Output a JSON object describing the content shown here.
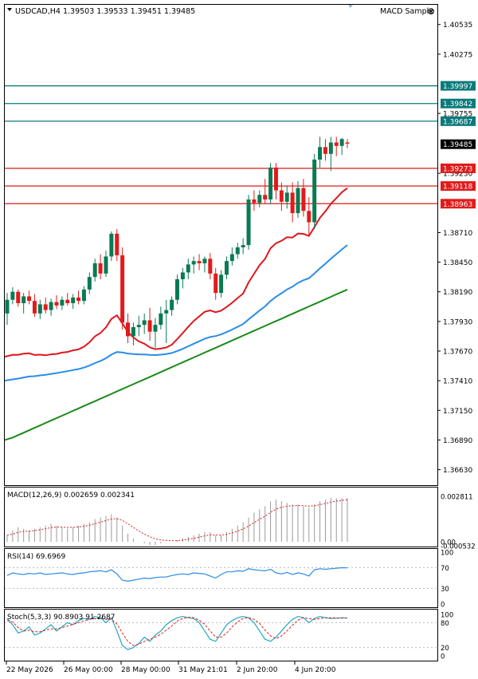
{
  "window": {
    "symbol_line": "USDCAD,H4  1.39503 1.39533 1.39451 1.39485",
    "indicator_label": "MACD Sample",
    "close_glyph": "⊗"
  },
  "colors": {
    "bull": "#0a7a52",
    "bear": "#e01b1b",
    "ma_fast": "#e0171c",
    "ma_mid": "#2a8ce8",
    "ma_slow": "#1a8a1a",
    "teal_line": "#0b7a7a",
    "red_line": "#e01b1b",
    "macd_hist": "#9a9a9a",
    "macd_signal": "#e01b1b",
    "rsi": "#2a8ce8",
    "stoch_main": "#23a6c4",
    "stoch_signal": "#e01b1b"
  },
  "main_axis": {
    "ticks": [
      "1.40535",
      "1.40275",
      "1.39755",
      "1.39230",
      "1.38710",
      "1.38450",
      "1.38190",
      "1.37930",
      "1.37670",
      "1.37410",
      "1.37150",
      "1.36890",
      "1.36630"
    ]
  },
  "levels": {
    "teal": [
      {
        "price": 1.39997,
        "label": "1.39997"
      },
      {
        "price": 1.39842,
        "label": "1.39842"
      },
      {
        "price": 1.39687,
        "label": "1.39687"
      }
    ],
    "red": [
      {
        "price": 1.39273,
        "label": "1.39273"
      },
      {
        "price": 1.39118,
        "label": "1.39118"
      },
      {
        "price": 1.38963,
        "label": "1.38963"
      }
    ],
    "current": {
      "price": 1.39485,
      "label": "1.39485"
    }
  },
  "macd": {
    "header": "MACD(12,26,9) 0.002659 0.002341",
    "ticks": [
      "0.002811",
      "0.00",
      "-0.000532"
    ]
  },
  "rsi": {
    "header": "RSI(14) 69.6969",
    "ticks": [
      "100",
      "70",
      "30",
      "0"
    ]
  },
  "stoch": {
    "header": "Stoch(5,3,3) 90.8903 91.2687",
    "ticks": [
      "100",
      "80",
      "20",
      "0"
    ]
  },
  "time_axis": {
    "labels": [
      "22 May 2026",
      "26 May 00:00",
      "28 May 00:00",
      "31 May 21:01",
      "2 Jun 20:00",
      "4 Jun 20:00"
    ]
  },
  "chart_data": {
    "type": "candlestick",
    "symbol": "USDCAD",
    "timeframe": "H4",
    "ylim": [
      1.3655,
      1.4068
    ],
    "candles": [
      [
        1.38,
        1.3818,
        1.379,
        1.3812
      ],
      [
        1.3812,
        1.3823,
        1.3808,
        1.3819
      ],
      [
        1.3819,
        1.3821,
        1.3806,
        1.3809
      ],
      [
        1.3809,
        1.3818,
        1.38,
        1.3815
      ],
      [
        1.3815,
        1.382,
        1.3808,
        1.3811
      ],
      [
        1.3811,
        1.3817,
        1.3797,
        1.38
      ],
      [
        1.38,
        1.3812,
        1.3795,
        1.3808
      ],
      [
        1.3808,
        1.3814,
        1.38,
        1.3803
      ],
      [
        1.3803,
        1.3813,
        1.3798,
        1.381
      ],
      [
        1.381,
        1.3816,
        1.3804,
        1.3807
      ],
      [
        1.3807,
        1.3815,
        1.3803,
        1.3812
      ],
      [
        1.3812,
        1.3818,
        1.3807,
        1.3809
      ],
      [
        1.3809,
        1.3817,
        1.3804,
        1.3814
      ],
      [
        1.3814,
        1.382,
        1.3808,
        1.3811
      ],
      [
        1.3811,
        1.3824,
        1.3808,
        1.3821
      ],
      [
        1.3821,
        1.3836,
        1.3817,
        1.3832
      ],
      [
        1.3832,
        1.3848,
        1.3828,
        1.3844
      ],
      [
        1.3844,
        1.3852,
        1.383,
        1.3835
      ],
      [
        1.3835,
        1.3855,
        1.3832,
        1.385
      ],
      [
        1.385,
        1.3872,
        1.3846,
        1.387
      ],
      [
        1.387,
        1.3874,
        1.3846,
        1.3851
      ],
      [
        1.3851,
        1.3858,
        1.3786,
        1.3792
      ],
      [
        1.3792,
        1.38,
        1.3774,
        1.378
      ],
      [
        1.378,
        1.3792,
        1.3772,
        1.3788
      ],
      [
        1.3788,
        1.3798,
        1.378,
        1.379
      ],
      [
        1.379,
        1.38,
        1.3782,
        1.3794
      ],
      [
        1.3794,
        1.3805,
        1.3776,
        1.3784
      ],
      [
        1.3784,
        1.3796,
        1.377,
        1.379
      ],
      [
        1.379,
        1.3806,
        1.3786,
        1.38
      ],
      [
        1.38,
        1.3812,
        1.3774,
        1.3803
      ],
      [
        1.3803,
        1.3815,
        1.3798,
        1.3812
      ],
      [
        1.3812,
        1.3834,
        1.3808,
        1.383
      ],
      [
        1.383,
        1.384,
        1.3822,
        1.3836
      ],
      [
        1.3836,
        1.3848,
        1.383,
        1.3843
      ],
      [
        1.3843,
        1.385,
        1.3835,
        1.3846
      ],
      [
        1.3846,
        1.3852,
        1.3838,
        1.3844
      ],
      [
        1.3844,
        1.385,
        1.3836,
        1.3848
      ],
      [
        1.3848,
        1.3853,
        1.383,
        1.3835
      ],
      [
        1.3835,
        1.384,
        1.3812,
        1.3818
      ],
      [
        1.3818,
        1.3838,
        1.3814,
        1.3834
      ],
      [
        1.3834,
        1.385,
        1.383,
        1.3846
      ],
      [
        1.3846,
        1.3858,
        1.3842,
        1.3852
      ],
      [
        1.3852,
        1.3862,
        1.3848,
        1.3858
      ],
      [
        1.3858,
        1.3866,
        1.3852,
        1.386
      ],
      [
        1.386,
        1.3904,
        1.3856,
        1.39
      ],
      [
        1.39,
        1.3908,
        1.389,
        1.3897
      ],
      [
        1.3897,
        1.3908,
        1.3893,
        1.3904
      ],
      [
        1.3904,
        1.3918,
        1.3896,
        1.39
      ],
      [
        1.39,
        1.3932,
        1.3896,
        1.3928
      ],
      [
        1.3928,
        1.3932,
        1.39,
        1.3908
      ],
      [
        1.3908,
        1.3915,
        1.389,
        1.3898
      ],
      [
        1.3898,
        1.3912,
        1.3892,
        1.3906
      ],
      [
        1.3906,
        1.3915,
        1.388,
        1.3888
      ],
      [
        1.3888,
        1.3916,
        1.3884,
        1.391
      ],
      [
        1.391,
        1.3918,
        1.3885,
        1.389
      ],
      [
        1.389,
        1.3902,
        1.3868,
        1.388
      ],
      [
        1.388,
        1.394,
        1.3874,
        1.3935
      ],
      [
        1.3935,
        1.3955,
        1.3928,
        1.3946
      ],
      [
        1.3946,
        1.3953,
        1.3934,
        1.394
      ],
      [
        1.394,
        1.3955,
        1.3925,
        1.395
      ],
      [
        1.395,
        1.3955,
        1.3938,
        1.3947
      ],
      [
        1.3947,
        1.3954,
        1.3939,
        1.3953
      ],
      [
        1.395,
        1.3953,
        1.3945,
        1.3949
      ]
    ],
    "moving_averages": [
      {
        "name": "fast",
        "from": 1.3762,
        "to": 1.391
      },
      {
        "name": "mid",
        "from": 1.3741,
        "to": 1.386
      },
      {
        "name": "slow",
        "from": 1.3689,
        "to": 1.3821
      }
    ],
    "macd_hist": [
      0.0004,
      0.0007,
      0.0009,
      0.0008,
      0.0007,
      0.0008,
      0.0009,
      0.001,
      0.0011,
      0.001,
      0.0009,
      0.0008,
      0.0009,
      0.001,
      0.0011,
      0.0012,
      0.0014,
      0.0015,
      0.0016,
      0.0017,
      0.0015,
      0.001,
      0.0005,
      0.0002,
      0.0,
      -0.0001,
      -0.0002,
      -0.0002,
      -0.0001,
      0.0,
      0.0,
      0.0001,
      0.0002,
      0.0003,
      0.0004,
      0.0005,
      0.0006,
      0.0006,
      0.0004,
      0.0004,
      0.0006,
      0.0008,
      0.001,
      0.0012,
      0.0015,
      0.0018,
      0.002,
      0.0022,
      0.0025,
      0.0026,
      0.0025,
      0.0024,
      0.0023,
      0.0023,
      0.0022,
      0.0021,
      0.0023,
      0.0025,
      0.0026,
      0.0027,
      0.0027,
      0.0027,
      0.0027
    ],
    "rsi": [
      55,
      60,
      58,
      57,
      59,
      58,
      60,
      57,
      58,
      59,
      60,
      58,
      57,
      59,
      60,
      62,
      63,
      64,
      62,
      66,
      58,
      46,
      44,
      46,
      48,
      50,
      49,
      51,
      52,
      52,
      55,
      57,
      58,
      57,
      60,
      59,
      58,
      54,
      50,
      57,
      62,
      62,
      64,
      63,
      68,
      66,
      65,
      64,
      67,
      60,
      58,
      61,
      57,
      60,
      58,
      54,
      66,
      68,
      67,
      68,
      69,
      70,
      69.7
    ],
    "stoch_main": [
      90,
      75,
      55,
      60,
      70,
      50,
      55,
      65,
      75,
      60,
      70,
      80,
      75,
      85,
      90,
      88,
      95,
      92,
      80,
      92,
      60,
      25,
      15,
      20,
      30,
      45,
      35,
      50,
      60,
      75,
      85,
      92,
      95,
      92,
      90,
      80,
      60,
      40,
      35,
      55,
      75,
      85,
      92,
      95,
      92,
      80,
      60,
      40,
      35,
      45,
      60,
      75,
      88,
      95,
      92,
      80,
      90,
      95,
      92,
      90,
      91,
      92,
      91
    ],
    "stoch_signal": [
      85,
      82,
      68,
      60,
      62,
      58,
      58,
      62,
      65,
      65,
      68,
      72,
      76,
      80,
      84,
      88,
      90,
      92,
      88,
      88,
      77,
      55,
      35,
      25,
      28,
      35,
      40,
      45,
      52,
      62,
      72,
      84,
      90,
      93,
      92,
      86,
      76,
      60,
      45,
      45,
      55,
      70,
      82,
      90,
      92,
      88,
      78,
      62,
      48,
      42,
      48,
      60,
      74,
      86,
      92,
      90,
      88,
      90,
      92,
      92,
      91,
      91,
      91.3
    ]
  }
}
